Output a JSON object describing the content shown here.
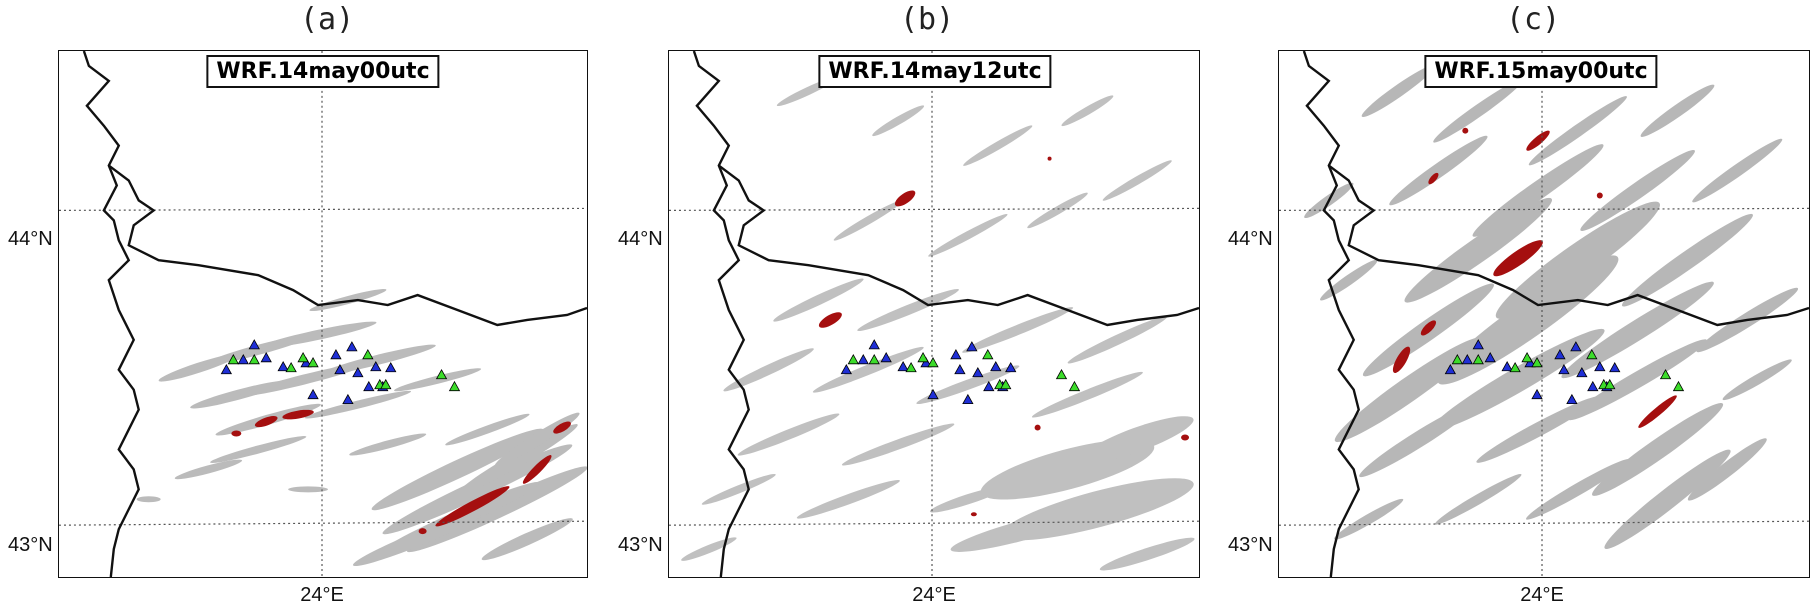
{
  "panels": [
    {
      "letter": "(a)",
      "title": "WRF.14may00utc",
      "lat_labels": [
        "44°N",
        "43°N"
      ],
      "lon_label": "24°E",
      "clutter_level": "light",
      "red_level": "southeast band"
    },
    {
      "letter": "(b)",
      "title": "WRF.14may12utc",
      "lat_labels": [
        "44°N",
        "43°N"
      ],
      "lon_label": "24°E",
      "clutter_level": "moderate",
      "red_level": "sparse"
    },
    {
      "letter": "(c)",
      "title": "WRF.15may00utc",
      "lat_labels": [
        "44°N",
        "43°N"
      ],
      "lon_label": "24°E",
      "clutter_level": "heavy",
      "red_level": "central band"
    }
  ],
  "colors": {
    "clutter_gray": "#9a9a9a",
    "red_cells": "#a50f0f",
    "station_blue": "#1f2fd6",
    "station_green": "#3cdc2a",
    "border": "#111111",
    "grid": "#555555"
  }
}
